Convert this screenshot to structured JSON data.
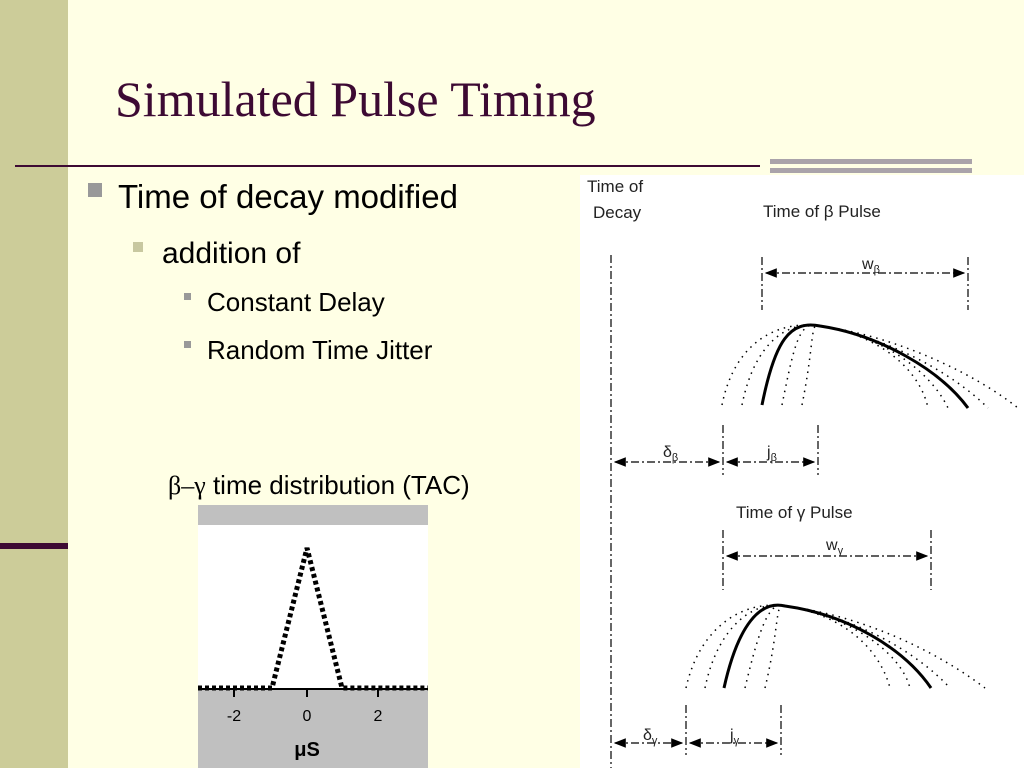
{
  "slide": {
    "title": "Simulated Pulse Timing",
    "bullets": [
      {
        "text": "Time of decay modified",
        "level": 1
      },
      {
        "text": "addition of",
        "level": 2
      },
      {
        "text": "Constant Delay",
        "level": 3
      },
      {
        "text": "Random Time Jitter",
        "level": 3
      }
    ],
    "caption": {
      "greek": "β–γ",
      "text": "time distribution (TAC)"
    },
    "tac_plot": {
      "xticks": [
        "-2",
        "0",
        "2"
      ],
      "xlabel": "μS"
    },
    "diagram": {
      "decay_label": [
        "Time of",
        "Decay"
      ],
      "beta_pulse": "Time of β Pulse",
      "gamma_pulse": "Time of γ Pulse",
      "w_beta": {
        "main": "w",
        "sub": "β"
      },
      "delta_beta": {
        "main": "δ",
        "sub": "β"
      },
      "j_beta": {
        "main": "j",
        "sub": "β"
      },
      "w_gamma": {
        "main": "w",
        "sub": "γ"
      },
      "delta_gamma": {
        "main": "δ",
        "sub": "γ"
      },
      "j_gamma": {
        "main": "j",
        "sub": "γ"
      }
    }
  }
}
